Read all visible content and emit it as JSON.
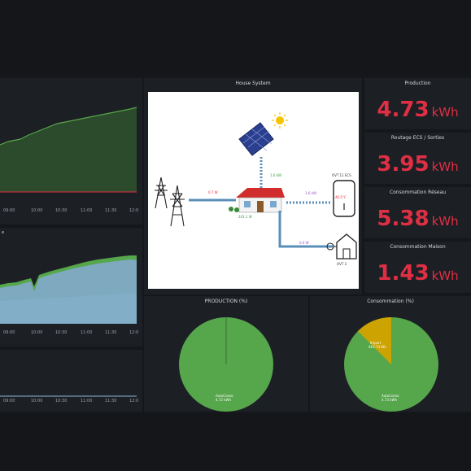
{
  "colors": {
    "accent_red": "#e02f44",
    "green": "#56a64b",
    "gold": "#cca300",
    "blue_area": "#8ab8d8"
  },
  "left_charts": {
    "chart1_ticks": [
      "09:00",
      "10:00",
      "10:30",
      "11:00",
      "11:30",
      "12:0"
    ],
    "chart2_title": "e",
    "chart2_ticks": [
      "09:00",
      "10:00",
      "10:30",
      "11:00",
      "11:30",
      "12:0"
    ],
    "chart3_ticks": [
      "09:00",
      "10:00",
      "10:30",
      "11:00",
      "11:30",
      "12:0"
    ]
  },
  "house_system": {
    "title": "House System",
    "grid_power": "0.7 W",
    "solar_power": "1.6 kW",
    "house_power": "241.1 W",
    "water_heater_power": "1.6 kW",
    "water_heater_label": "OVT 11 ECS",
    "water_heater_temp": "46.5°C",
    "ev_power": "0.0 W",
    "ev_label": "OVT 3"
  },
  "stats": [
    {
      "title": "Production",
      "value": "4.73",
      "unit": "kWh"
    },
    {
      "title": "Routage ECS / Sorties",
      "value": "3.95",
      "unit": "kWh"
    },
    {
      "title": "Consommation Réseau",
      "value": "5.38",
      "unit": "kWh"
    },
    {
      "title": "Consommation Maison",
      "value": "1.43",
      "unit": "kWh"
    }
  ],
  "pie_production": {
    "title": "PRODUCTION (%)",
    "slice_label": "AutoConso",
    "slice_value": "4.72 kWh"
  },
  "pie_consommation": {
    "title": "Consommation (%)",
    "slice1_label": "AutoConso",
    "slice1_value": "4.73 kWh",
    "slice2_label": "Import",
    "slice2_value": "463.73 Wh"
  },
  "chart_data": [
    {
      "type": "pie",
      "title": "PRODUCTION (%)",
      "series": [
        {
          "name": "AutoConso",
          "values": [
            99.5
          ]
        },
        {
          "name": "Other",
          "values": [
            0.5
          ]
        }
      ]
    },
    {
      "type": "pie",
      "title": "Consommation (%)",
      "series": [
        {
          "name": "AutoConso",
          "values": [
            91
          ]
        },
        {
          "name": "Import",
          "values": [
            9
          ]
        }
      ]
    }
  ]
}
